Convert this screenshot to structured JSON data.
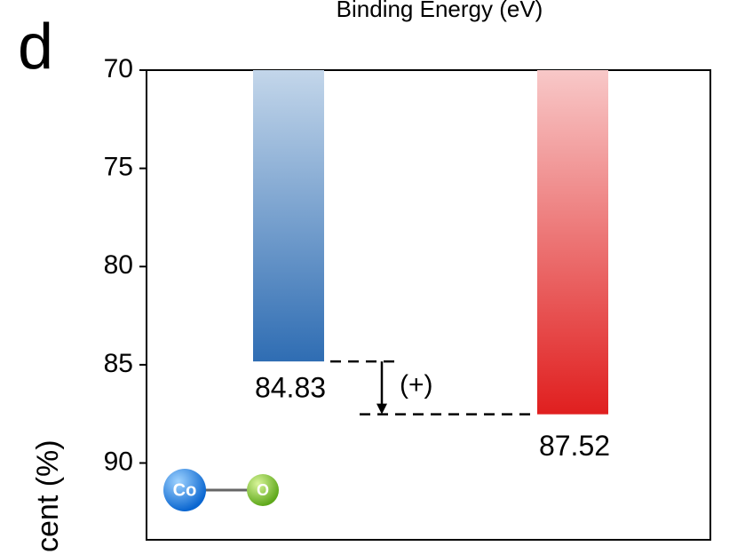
{
  "chart_data": {
    "type": "bar",
    "panel": "d",
    "title": "Binding Energy (eV)",
    "y_label": "cent (%)",
    "categories": [
      null,
      null
    ],
    "values": [
      84.83,
      87.52
    ],
    "colors": [
      [
        "#c3d6ea",
        "#2f6db3"
      ],
      [
        "#f8c8c8",
        "#e01f1f"
      ]
    ],
    "ylim": [
      70,
      94
    ],
    "yticks": [
      70,
      75,
      80,
      85,
      90
    ],
    "y_inverted": true,
    "grid": false,
    "annotation": "(+)",
    "atoms": [
      "Co",
      "O"
    ]
  }
}
